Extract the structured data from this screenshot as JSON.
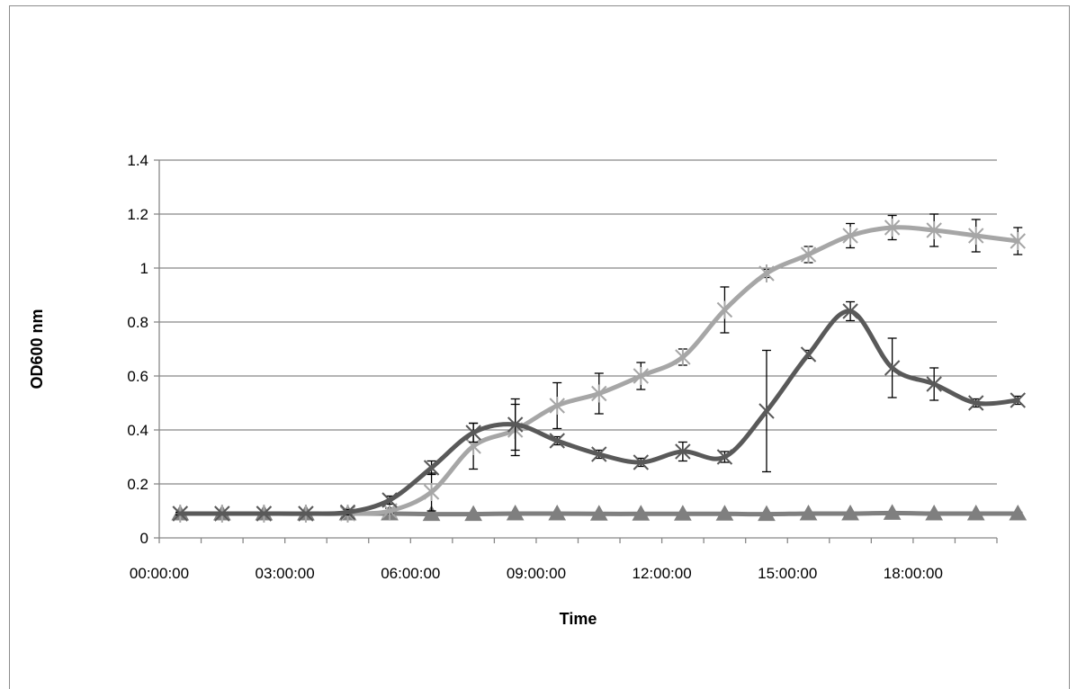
{
  "chart_data": {
    "type": "line",
    "title": "",
    "xlabel": "Time",
    "ylabel": "OD600 nm",
    "xlim": [
      "00:00:00",
      "20:00:00"
    ],
    "x_ticks": [
      "00:00:00",
      "03:00:00",
      "06:00:00",
      "09:00:00",
      "12:00:00",
      "15:00:00",
      "18:00:00"
    ],
    "ylim": [
      0,
      1.4
    ],
    "y_ticks": [
      "0",
      "0.2",
      "0.4",
      "0.6",
      "0.8",
      "1",
      "1.2",
      "1.4"
    ],
    "grid": true,
    "smooth": true,
    "x": [
      "00:30:00",
      "01:30:00",
      "02:30:00",
      "03:30:00",
      "04:30:00",
      "05:30:00",
      "06:30:00",
      "07:30:00",
      "08:30:00",
      "09:30:00",
      "10:30:00",
      "11:30:00",
      "12:30:00",
      "13:30:00",
      "14:30:00",
      "15:30:00",
      "16:30:00",
      "17:30:00",
      "18:30:00",
      "19:30:00",
      "20:30:00"
    ],
    "series": [
      {
        "color": "#595959",
        "marker": "x",
        "values": [
          0.09,
          0.09,
          0.09,
          0.09,
          0.095,
          0.14,
          0.26,
          0.39,
          0.42,
          0.36,
          0.31,
          0.28,
          0.32,
          0.3,
          0.47,
          0.68,
          0.84,
          0.63,
          0.57,
          0.5,
          0.51
        ],
        "errors": [
          0.005,
          0.005,
          0.005,
          0.005,
          0.01,
          0.015,
          0.025,
          0.035,
          0.095,
          0.015,
          0.015,
          0.015,
          0.035,
          0.02,
          0.225,
          0.015,
          0.035,
          0.11,
          0.06,
          0.015,
          0.015
        ]
      },
      {
        "color": "#a6a6a6",
        "marker": "asterisk",
        "values": [
          0.09,
          0.09,
          0.09,
          0.09,
          0.09,
          0.1,
          0.17,
          0.34,
          0.4,
          0.49,
          0.535,
          0.6,
          0.67,
          0.845,
          0.98,
          1.05,
          1.12,
          1.15,
          1.14,
          1.12,
          1.1
        ],
        "errors": [
          0.005,
          0.005,
          0.005,
          0.005,
          0.005,
          0.01,
          0.07,
          0.085,
          0.095,
          0.085,
          0.075,
          0.05,
          0.03,
          0.085,
          0.015,
          0.03,
          0.045,
          0.045,
          0.06,
          0.06,
          0.05
        ]
      },
      {
        "color": "#7f7f7f",
        "marker": "triangle",
        "values": [
          0.09,
          0.09,
          0.09,
          0.09,
          0.09,
          0.09,
          0.088,
          0.088,
          0.09,
          0.09,
          0.089,
          0.089,
          0.089,
          0.089,
          0.088,
          0.09,
          0.09,
          0.092,
          0.09,
          0.09,
          0.09
        ],
        "errors": [
          0.005,
          0.005,
          0.005,
          0.005,
          0.005,
          0.005,
          0.005,
          0.005,
          0.005,
          0.005,
          0.005,
          0.005,
          0.005,
          0.005,
          0.005,
          0.005,
          0.005,
          0.005,
          0.005,
          0.005,
          0.005
        ]
      }
    ]
  }
}
